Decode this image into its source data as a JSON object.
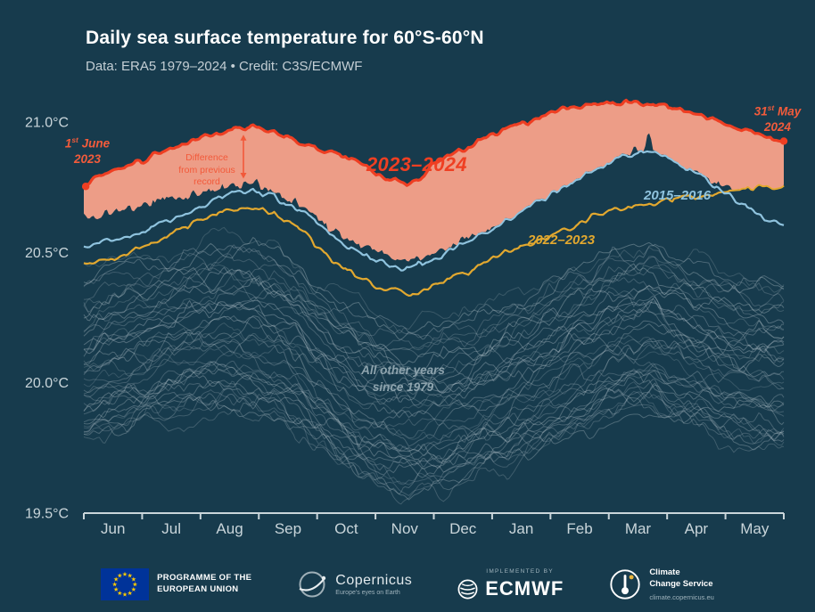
{
  "header": {
    "title": "Daily sea surface temperature for 60°S-60°N",
    "subtitle": "Data: ERA5 1979–2024 • Credit: C3S/ECMWF"
  },
  "axes": {
    "x_ticks": [
      "Jun",
      "Jul",
      "Aug",
      "Sep",
      "Oct",
      "Nov",
      "Dec",
      "Jan",
      "Feb",
      "Mar",
      "Apr",
      "May"
    ],
    "y_ticks": [
      "21.0°C",
      "20.5°C",
      "20.0°C",
      "19.5°C"
    ]
  },
  "annotations": {
    "start_label": {
      "day": "1",
      "ordinal": "st",
      "month": "June",
      "year": "2023"
    },
    "end_label": {
      "day": "31",
      "ordinal": "st",
      "month": "May",
      "year": "2024"
    },
    "diff_label": {
      "line1": "Difference",
      "line2": "from previous",
      "line3": "record"
    },
    "main_series": "2023–2024",
    "series_2015": "2015–2016",
    "series_2022": "2022–2023",
    "other_years": {
      "line1": "All other years",
      "line2": "since 1979"
    }
  },
  "footer": {
    "eu": {
      "line1": "PROGRAMME OF THE",
      "line2": "EUROPEAN UNION"
    },
    "copernicus": {
      "name": "Copernicus",
      "tagline": "Europe's eyes on Earth"
    },
    "ecmwf": {
      "implemented_by": "IMPLEMENTED BY",
      "name": "ECMWF"
    },
    "c3s": {
      "line1": "Climate",
      "line2": "Change Service",
      "url": "climate.copernicus.eu"
    }
  },
  "colors": {
    "background": "#173b4d",
    "axis": "#c9d5da",
    "record_red": "#ee3e22",
    "band_salmon": "#f7a189",
    "year_2022_gold": "#e2a82f",
    "year_2015_blue": "#8fc3de",
    "other_years_gray": "#b6c5cc",
    "annotation_red": "#f2593a"
  },
  "chart_data": {
    "type": "line",
    "title": "Daily sea surface temperature for 60°S-60°N",
    "xlabel": "",
    "ylabel": "°C",
    "x_unit": "day of year (1 June to 31 May)",
    "x_months": [
      "Jun",
      "Jul",
      "Aug",
      "Sep",
      "Oct",
      "Nov",
      "Dec",
      "Jan",
      "Feb",
      "Mar",
      "Apr",
      "May"
    ],
    "y_axis": {
      "ticks": [
        21.0,
        20.5,
        20.0,
        19.5
      ],
      "range": [
        19.5,
        21.12
      ]
    },
    "grid": false,
    "legend": "inline annotations",
    "band_color": "#f7a189",
    "band_meaning": "Difference between 2023–2024 and previous record",
    "series": [
      {
        "role": "main",
        "name": "2023–2024",
        "color": "#ee3e22",
        "points": [
          [
            0,
            20.76
          ],
          [
            8,
            20.79
          ],
          [
            16,
            20.82
          ],
          [
            24,
            20.84
          ],
          [
            30,
            20.85
          ],
          [
            38,
            20.88
          ],
          [
            46,
            20.9
          ],
          [
            54,
            20.92
          ],
          [
            61,
            20.94
          ],
          [
            70,
            20.96
          ],
          [
            80,
            20.975
          ],
          [
            88,
            20.98
          ],
          [
            96,
            20.96
          ],
          [
            105,
            20.94
          ],
          [
            114,
            20.92
          ],
          [
            122,
            20.9
          ],
          [
            130,
            20.88
          ],
          [
            138,
            20.86
          ],
          [
            146,
            20.83
          ],
          [
            153,
            20.8
          ],
          [
            160,
            20.78
          ],
          [
            167,
            20.765
          ],
          [
            174,
            20.78
          ],
          [
            183,
            20.84
          ],
          [
            191,
            20.87
          ],
          [
            199,
            20.9
          ],
          [
            207,
            20.93
          ],
          [
            214,
            20.95
          ],
          [
            222,
            20.98
          ],
          [
            230,
            21.0
          ],
          [
            238,
            21.02
          ],
          [
            245,
            21.04
          ],
          [
            252,
            21.05
          ],
          [
            260,
            21.06
          ],
          [
            267,
            21.07
          ],
          [
            274,
            21.08
          ],
          [
            282,
            21.075
          ],
          [
            290,
            21.07
          ],
          [
            298,
            21.065
          ],
          [
            305,
            21.055
          ],
          [
            313,
            21.04
          ],
          [
            321,
            21.02
          ],
          [
            328,
            21.005
          ],
          [
            335,
            20.99
          ],
          [
            343,
            20.97
          ],
          [
            351,
            20.95
          ],
          [
            358,
            20.93
          ],
          [
            364,
            20.92
          ]
        ]
      },
      {
        "role": "record_envelope",
        "name": "Previous record (daily max of all years before June 2023)",
        "color": "#173b4d",
        "points": [
          [
            0,
            20.64
          ],
          [
            10,
            20.65
          ],
          [
            20,
            20.665
          ],
          [
            30,
            20.68
          ],
          [
            40,
            20.7
          ],
          [
            50,
            20.715
          ],
          [
            61,
            20.73
          ],
          [
            70,
            20.75
          ],
          [
            80,
            20.755
          ],
          [
            88,
            20.77
          ],
          [
            96,
            20.74
          ],
          [
            105,
            20.71
          ],
          [
            114,
            20.68
          ],
          [
            122,
            20.62
          ],
          [
            130,
            20.58
          ],
          [
            138,
            20.55
          ],
          [
            146,
            20.52
          ],
          [
            153,
            20.5
          ],
          [
            161,
            20.48
          ],
          [
            168,
            20.465
          ],
          [
            176,
            20.48
          ],
          [
            183,
            20.5
          ],
          [
            191,
            20.52
          ],
          [
            199,
            20.55
          ],
          [
            207,
            20.57
          ],
          [
            214,
            20.6
          ],
          [
            222,
            20.62
          ],
          [
            230,
            20.65
          ],
          [
            238,
            20.67
          ],
          [
            245,
            20.7
          ],
          [
            252,
            20.73
          ],
          [
            259,
            20.77
          ],
          [
            266,
            20.8
          ],
          [
            274,
            20.85
          ],
          [
            280,
            20.87
          ],
          [
            286,
            20.89
          ],
          [
            291,
            20.88
          ],
          [
            294,
            20.96
          ],
          [
            297,
            20.88
          ],
          [
            302,
            20.86
          ],
          [
            308,
            20.84
          ],
          [
            314,
            20.81
          ],
          [
            320,
            20.79
          ],
          [
            328,
            20.77
          ],
          [
            335,
            20.75
          ],
          [
            343,
            20.73
          ],
          [
            351,
            20.715
          ],
          [
            358,
            20.705
          ],
          [
            364,
            20.7
          ]
        ]
      },
      {
        "role": "prev_record_2015",
        "name": "2015–2016",
        "color": "#8fc3de",
        "points": [
          [
            0,
            20.52
          ],
          [
            10,
            20.54
          ],
          [
            20,
            20.555
          ],
          [
            30,
            20.575
          ],
          [
            40,
            20.61
          ],
          [
            50,
            20.645
          ],
          [
            61,
            20.675
          ],
          [
            70,
            20.71
          ],
          [
            80,
            20.73
          ],
          [
            88,
            20.74
          ],
          [
            96,
            20.72
          ],
          [
            105,
            20.69
          ],
          [
            114,
            20.655
          ],
          [
            122,
            20.61
          ],
          [
            130,
            20.56
          ],
          [
            138,
            20.52
          ],
          [
            146,
            20.49
          ],
          [
            153,
            20.465
          ],
          [
            161,
            20.45
          ],
          [
            168,
            20.44
          ],
          [
            176,
            20.455
          ],
          [
            183,
            20.48
          ],
          [
            191,
            20.51
          ],
          [
            199,
            20.54
          ],
          [
            207,
            20.57
          ],
          [
            214,
            20.6
          ],
          [
            222,
            20.635
          ],
          [
            230,
            20.665
          ],
          [
            238,
            20.7
          ],
          [
            245,
            20.73
          ],
          [
            252,
            20.76
          ],
          [
            259,
            20.79
          ],
          [
            266,
            20.82
          ],
          [
            274,
            20.85
          ],
          [
            281,
            20.87
          ],
          [
            288,
            20.885
          ],
          [
            295,
            20.88
          ],
          [
            302,
            20.865
          ],
          [
            308,
            20.845
          ],
          [
            314,
            20.82
          ],
          [
            320,
            20.795
          ],
          [
            328,
            20.76
          ],
          [
            335,
            20.72
          ],
          [
            343,
            20.68
          ],
          [
            351,
            20.645
          ],
          [
            358,
            20.62
          ],
          [
            364,
            20.6
          ]
        ]
      },
      {
        "role": "prev_year_2022",
        "name": "2022–2023",
        "color": "#e2a82f",
        "points": [
          [
            0,
            20.46
          ],
          [
            10,
            20.475
          ],
          [
            20,
            20.49
          ],
          [
            30,
            20.515
          ],
          [
            40,
            20.55
          ],
          [
            50,
            20.59
          ],
          [
            61,
            20.625
          ],
          [
            70,
            20.655
          ],
          [
            80,
            20.67
          ],
          [
            88,
            20.675
          ],
          [
            96,
            20.655
          ],
          [
            105,
            20.625
          ],
          [
            114,
            20.59
          ],
          [
            122,
            20.52
          ],
          [
            130,
            20.47
          ],
          [
            138,
            20.43
          ],
          [
            146,
            20.4
          ],
          [
            153,
            20.37
          ],
          [
            161,
            20.35
          ],
          [
            168,
            20.34
          ],
          [
            176,
            20.355
          ],
          [
            183,
            20.38
          ],
          [
            191,
            20.4
          ],
          [
            199,
            20.42
          ],
          [
            207,
            20.45
          ],
          [
            214,
            20.48
          ],
          [
            222,
            20.505
          ],
          [
            230,
            20.525
          ],
          [
            238,
            20.55
          ],
          [
            245,
            20.575
          ],
          [
            252,
            20.595
          ],
          [
            259,
            20.615
          ],
          [
            266,
            20.64
          ],
          [
            274,
            20.66
          ],
          [
            282,
            20.675
          ],
          [
            290,
            20.685
          ],
          [
            298,
            20.69
          ],
          [
            305,
            20.7
          ],
          [
            313,
            20.71
          ],
          [
            321,
            20.72
          ],
          [
            328,
            20.725
          ],
          [
            335,
            20.73
          ],
          [
            343,
            20.74
          ],
          [
            351,
            20.75
          ],
          [
            358,
            20.755
          ],
          [
            364,
            20.76
          ]
        ]
      }
    ],
    "background_years": {
      "name": "All other years since 1979",
      "count": 43,
      "color": "#b6c5cc",
      "offset_range": [
        -0.33,
        0.3
      ],
      "baseline_points": [
        [
          0,
          20.1
        ],
        [
          15,
          20.14
        ],
        [
          30,
          20.17
        ],
        [
          45,
          20.2
        ],
        [
          61,
          20.22
        ],
        [
          75,
          20.235
        ],
        [
          88,
          20.23
        ],
        [
          100,
          20.2
        ],
        [
          110,
          20.16
        ],
        [
          122,
          20.08
        ],
        [
          135,
          20.01
        ],
        [
          146,
          19.97
        ],
        [
          153,
          19.95
        ],
        [
          163,
          19.93
        ],
        [
          172,
          19.92
        ],
        [
          183,
          19.93
        ],
        [
          198,
          19.96
        ],
        [
          214,
          20.0
        ],
        [
          230,
          20.05
        ],
        [
          245,
          20.1
        ],
        [
          259,
          20.15
        ],
        [
          274,
          20.2
        ],
        [
          285,
          20.225
        ],
        [
          295,
          20.23
        ],
        [
          305,
          20.19
        ],
        [
          320,
          20.155
        ],
        [
          335,
          20.12
        ],
        [
          350,
          20.1
        ],
        [
          364,
          20.08
        ]
      ]
    }
  }
}
